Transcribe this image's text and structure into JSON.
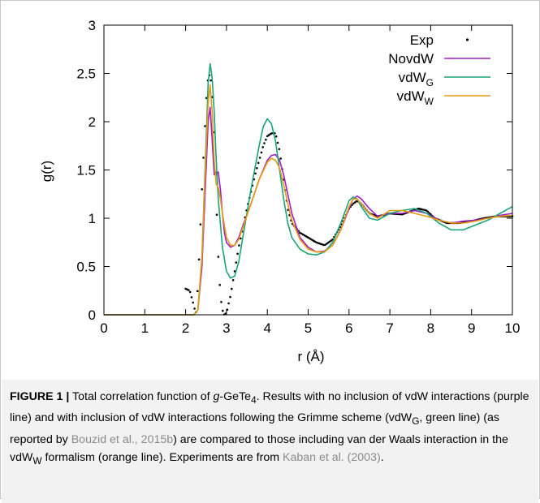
{
  "chart_data": {
    "type": "line",
    "xlabel": "r (Å)",
    "ylabel": "g(r)",
    "xlim": [
      0,
      10
    ],
    "ylim": [
      0,
      3
    ],
    "x_ticks": [
      "0",
      "1",
      "2",
      "3",
      "4",
      "5",
      "6",
      "7",
      "8",
      "9",
      "10"
    ],
    "y_ticks": [
      "0",
      "0.5",
      "1",
      "1.5",
      "2",
      "2.5",
      "3"
    ],
    "grid": false,
    "legend_position": "top-right",
    "series": [
      {
        "name": "Exp",
        "legend_main": "Exp",
        "legend_sub": "",
        "color": "#000000",
        "style": "dotted",
        "x": [
          2.0,
          2.1,
          2.2,
          2.25,
          2.3,
          2.4,
          2.5,
          2.55,
          2.6,
          2.65,
          2.7,
          2.75,
          2.8,
          2.85,
          2.9,
          2.95,
          3.0,
          3.1,
          3.2,
          3.3,
          3.5,
          3.7,
          3.9,
          4.0,
          4.1,
          4.2,
          4.3,
          4.4,
          4.5,
          4.6,
          4.8,
          5.0,
          5.2,
          5.4,
          5.6,
          5.8,
          6.0,
          6.1,
          6.2,
          6.3,
          6.5,
          6.7,
          7.0,
          7.3,
          7.5,
          7.7,
          7.9,
          8.1,
          8.4,
          8.7,
          9.0,
          9.3,
          9.6,
          10.0
        ],
        "y": [
          0.27,
          0.25,
          0.1,
          0.0,
          0.3,
          1.3,
          2.2,
          2.45,
          2.5,
          2.3,
          1.8,
          1.2,
          0.6,
          0.2,
          0.05,
          0.0,
          0.02,
          0.2,
          0.45,
          0.7,
          1.1,
          1.45,
          1.75,
          1.85,
          1.88,
          1.88,
          1.7,
          1.4,
          1.1,
          0.95,
          0.85,
          0.8,
          0.75,
          0.72,
          0.78,
          0.92,
          1.1,
          1.15,
          1.18,
          1.15,
          1.05,
          1.02,
          1.05,
          1.04,
          1.07,
          1.1,
          1.08,
          1.0,
          0.95,
          0.95,
          0.97,
          1.0,
          1.02,
          1.02
        ]
      },
      {
        "name": "NovdW",
        "legend_main": "NovdW",
        "legend_sub": "",
        "color": "#a020c8",
        "style": "solid",
        "x": [
          0.0,
          2.0,
          2.2,
          2.3,
          2.4,
          2.5,
          2.55,
          2.6,
          2.65,
          2.7,
          2.75,
          2.8,
          2.85,
          2.9,
          2.95,
          3.0,
          3.1,
          3.2,
          3.3,
          3.4,
          3.6,
          3.8,
          4.0,
          4.1,
          4.2,
          4.3,
          4.4,
          4.5,
          4.6,
          4.8,
          5.0,
          5.2,
          5.4,
          5.6,
          5.8,
          6.0,
          6.1,
          6.2,
          6.3,
          6.5,
          6.7,
          7.0,
          7.3,
          7.6,
          7.9,
          8.2,
          8.5,
          8.8,
          9.1,
          9.4,
          9.7,
          10.0
        ],
        "y": [
          0.0,
          0.0,
          0.0,
          0.05,
          0.5,
          1.5,
          2.0,
          2.15,
          1.8,
          1.45,
          1.45,
          1.48,
          1.3,
          1.05,
          0.85,
          0.75,
          0.7,
          0.72,
          0.8,
          0.92,
          1.15,
          1.4,
          1.6,
          1.65,
          1.66,
          1.6,
          1.45,
          1.25,
          1.05,
          0.8,
          0.7,
          0.65,
          0.66,
          0.72,
          0.88,
          1.1,
          1.2,
          1.23,
          1.2,
          1.1,
          1.02,
          1.05,
          1.05,
          1.08,
          1.05,
          0.98,
          0.95,
          0.97,
          0.98,
          1.0,
          1.03,
          1.05
        ]
      },
      {
        "name": "vdWG",
        "legend_main": "vdW",
        "legend_sub": "G",
        "color": "#1aa47a",
        "style": "solid",
        "x": [
          0.0,
          2.0,
          2.2,
          2.3,
          2.4,
          2.5,
          2.55,
          2.6,
          2.65,
          2.7,
          2.75,
          2.8,
          2.9,
          3.0,
          3.1,
          3.2,
          3.3,
          3.4,
          3.6,
          3.8,
          3.9,
          4.0,
          4.1,
          4.2,
          4.3,
          4.4,
          4.5,
          4.6,
          4.8,
          5.0,
          5.2,
          5.4,
          5.6,
          5.8,
          6.0,
          6.1,
          6.2,
          6.3,
          6.5,
          6.7,
          7.0,
          7.3,
          7.6,
          7.9,
          8.2,
          8.5,
          8.8,
          9.1,
          9.4,
          9.7,
          10.0
        ],
        "y": [
          0.0,
          0.0,
          0.0,
          0.05,
          0.6,
          1.8,
          2.4,
          2.6,
          2.45,
          2.1,
          1.6,
          1.2,
          0.7,
          0.45,
          0.38,
          0.4,
          0.55,
          0.8,
          1.3,
          1.75,
          1.95,
          2.03,
          1.98,
          1.8,
          1.5,
          1.2,
          0.95,
          0.8,
          0.68,
          0.63,
          0.62,
          0.65,
          0.75,
          0.95,
          1.18,
          1.22,
          1.2,
          1.12,
          1.0,
          0.98,
          1.05,
          1.08,
          1.1,
          1.05,
          0.95,
          0.88,
          0.88,
          0.93,
          0.98,
          1.05,
          1.12
        ]
      },
      {
        "name": "vdWW",
        "legend_main": "vdW",
        "legend_sub": "W",
        "color": "#e89a10",
        "style": "solid",
        "x": [
          0.0,
          2.0,
          2.2,
          2.3,
          2.4,
          2.5,
          2.55,
          2.6,
          2.65,
          2.7,
          2.75,
          2.8,
          2.85,
          2.9,
          3.0,
          3.1,
          3.2,
          3.3,
          3.4,
          3.6,
          3.8,
          4.0,
          4.1,
          4.2,
          4.3,
          4.4,
          4.5,
          4.6,
          4.8,
          5.0,
          5.2,
          5.4,
          5.6,
          5.8,
          6.0,
          6.1,
          6.2,
          6.3,
          6.5,
          6.7,
          7.0,
          7.3,
          7.6,
          7.9,
          8.2,
          8.5,
          8.8,
          9.1,
          9.4,
          9.7,
          10.0
        ],
        "y": [
          0.0,
          0.0,
          0.0,
          0.05,
          0.6,
          1.7,
          2.2,
          2.38,
          2.1,
          1.6,
          1.35,
          1.32,
          1.2,
          1.05,
          0.8,
          0.72,
          0.72,
          0.78,
          0.9,
          1.15,
          1.4,
          1.58,
          1.62,
          1.6,
          1.52,
          1.35,
          1.15,
          0.98,
          0.78,
          0.68,
          0.65,
          0.65,
          0.72,
          0.88,
          1.12,
          1.2,
          1.2,
          1.15,
          1.05,
          1.0,
          1.08,
          1.08,
          1.05,
          1.02,
          0.98,
          0.95,
          0.95,
          0.97,
          1.0,
          1.02,
          1.03
        ]
      }
    ]
  },
  "caption": {
    "label": "FIGURE 1 |",
    "part1": " Total correlation function of ",
    "italic_g": "g",
    "part2": "-GeTe",
    "sub4": "4",
    "part3": ". Results with no inclusion of vdW interactions (purple line) and with inclusion of vdW interactions following the Grimme scheme (vdW",
    "subG": "G",
    "part4": ", green line) (as reported by ",
    "ref1": "Bouzid et al., 2015b",
    "part5": ") are compared to those including van der Waals interaction in the vdW",
    "subW": "W",
    "part6": " formalism (orange line). Experiments are from ",
    "ref2": "Kaban et al. (2003)",
    "part7": "."
  }
}
